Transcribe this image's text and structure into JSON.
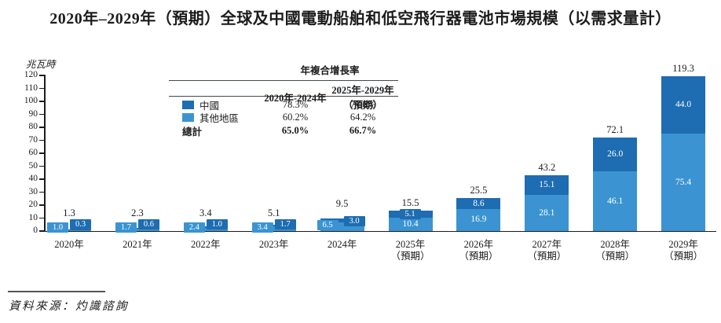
{
  "title": "2020年–2029年（預期）全球及中國電動船舶和低空飛行器電池市場規模（以需求量計）",
  "colors": {
    "china": "#1e6cb2",
    "other": "#3b94d1",
    "axis": "#1c1c1c",
    "table_rule": "#3e4a52"
  },
  "cagr_table": {
    "header": "年複合增長率",
    "columns": [
      "2020年-2024年",
      "2025年-2029年（預期）"
    ],
    "rows": [
      {
        "label": "中國",
        "swatch": "china",
        "values": [
          "78.3%",
          "71.6%"
        ]
      },
      {
        "label": "其他地區",
        "swatch": "other",
        "values": [
          "60.2%",
          "64.2%"
        ]
      },
      {
        "label": "總計",
        "swatch": "none",
        "values": [
          "65.0%",
          "66.7%"
        ]
      }
    ]
  },
  "chart_data": {
    "type": "bar",
    "stacked": true,
    "title": "2020年–2029年（預期）全球及中國電動船舶和低空飛行器電池市場規模（以需求量計）",
    "ylabel": "兆瓦時",
    "ylim": [
      0,
      120
    ],
    "y_ticks": [
      0,
      10,
      20,
      30,
      40,
      50,
      60,
      70,
      80,
      90,
      100,
      110,
      120
    ],
    "grid": false,
    "legend_position": "top-left-table",
    "categories": [
      "2020年",
      "2021年",
      "2022年",
      "2023年",
      "2024年",
      "2025年",
      "2026年",
      "2027年",
      "2028年",
      "2029年"
    ],
    "category_notes": [
      "",
      "",
      "",
      "",
      "",
      "（預期）",
      "（預期）",
      "（預期）",
      "（預期）",
      "（預期）"
    ],
    "series": [
      {
        "name": "中國",
        "color": "#1e6cb2",
        "values": [
          0.3,
          0.6,
          1.0,
          1.7,
          3.0,
          5.1,
          8.6,
          15.1,
          26.0,
          44.0
        ]
      },
      {
        "name": "其他地區",
        "color": "#3b94d1",
        "values": [
          1.0,
          1.7,
          2.4,
          3.4,
          6.5,
          10.4,
          16.9,
          28.1,
          46.1,
          75.4
        ]
      }
    ],
    "totals": [
      1.3,
      2.3,
      3.4,
      5.1,
      9.5,
      15.5,
      25.5,
      43.2,
      72.1,
      119.3
    ]
  },
  "source": {
    "label": "資料來源：",
    "value": "灼識諮詢"
  }
}
